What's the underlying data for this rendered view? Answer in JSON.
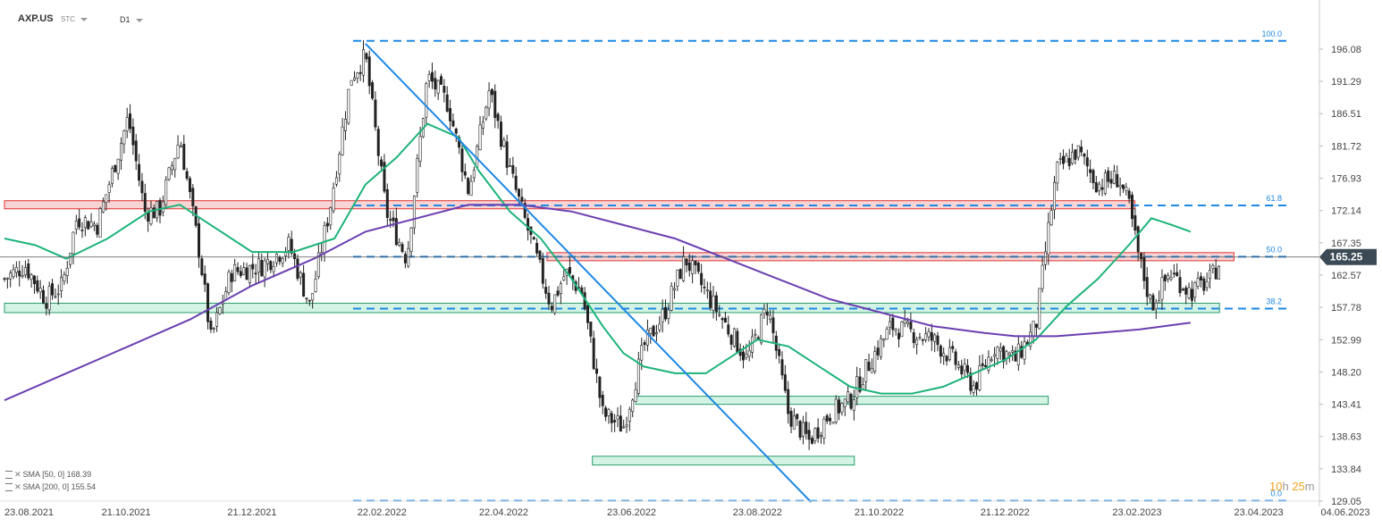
{
  "header": {
    "symbol": "AXP.US",
    "subtype": "STC",
    "timeframe": "D1"
  },
  "legend": [
    {
      "label": "SMA",
      "params": "[50, 0]",
      "value": "168.39",
      "color": "#1db37a"
    },
    {
      "label": "SMA",
      "params": "[200, 0]",
      "value": "155.54",
      "color": "#6b3fb0"
    }
  ],
  "countdown": {
    "hours": "10",
    "h_unit": "h",
    "minutes": "25",
    "m_unit": "m"
  },
  "chart_data": {
    "type": "candlestick",
    "symbol": "AXP.US",
    "timeframe": "D1",
    "y_range": [
      129.05,
      196.08
    ],
    "y_ticks": [
      {
        "value": 196.08,
        "label": "196.08"
      },
      {
        "value": 191.29,
        "label": "191.29"
      },
      {
        "value": 186.51,
        "label": "186.51"
      },
      {
        "value": 181.72,
        "label": "181.72"
      },
      {
        "value": 176.93,
        "label": "176.93"
      },
      {
        "value": 172.14,
        "label": "172.14"
      },
      {
        "value": 167.35,
        "label": "167.35"
      },
      {
        "value": 162.57,
        "label": "162.57"
      },
      {
        "value": 157.78,
        "label": "157.78"
      },
      {
        "value": 152.99,
        "label": "152.99"
      },
      {
        "value": 148.2,
        "label": "148.20"
      },
      {
        "value": 143.41,
        "label": "143.41"
      },
      {
        "value": 138.63,
        "label": "138.63"
      },
      {
        "value": 133.84,
        "label": "133.84"
      },
      {
        "value": 129.05,
        "label": "129.05"
      }
    ],
    "x_ticks": [
      {
        "day": 0,
        "label": "23.08.2021"
      },
      {
        "day": 59,
        "label": "21.10.2021"
      },
      {
        "day": 120,
        "label": "21.12.2021"
      },
      {
        "day": 183,
        "label": "22.02.2022"
      },
      {
        "day": 242,
        "label": "22.04.2022"
      },
      {
        "day": 304,
        "label": "23.06.2022"
      },
      {
        "day": 365,
        "label": "23.08.2022"
      },
      {
        "day": 424,
        "label": "21.10.2022"
      },
      {
        "day": 485,
        "label": "21.12.2022"
      },
      {
        "day": 549,
        "label": "23.02.2023"
      },
      {
        "day": 608,
        "label": "23.04.2023"
      },
      {
        "day": 650,
        "label": "04.06.2023"
      }
    ],
    "last_price": {
      "value": 165.25,
      "label": "165.25"
    },
    "fib_levels": [
      {
        "level": "100.0",
        "price": 197.3
      },
      {
        "level": "61.8",
        "price": 172.9
      },
      {
        "level": "50.0",
        "price": 165.3
      },
      {
        "level": "38.2",
        "price": 157.6
      },
      {
        "level": "0.0",
        "price": 129.1
      }
    ],
    "resistance_zones": [
      {
        "day_from": 0,
        "day_to": 548,
        "price_low": 172.4,
        "price_high": 173.6
      },
      {
        "day_from": 263,
        "day_to": 596,
        "price_low": 164.7,
        "price_high": 165.9
      }
    ],
    "support_zones": [
      {
        "day_from": 0,
        "day_to": 589,
        "price_low": 157.0,
        "price_high": 158.4
      },
      {
        "day_from": 306,
        "day_to": 506,
        "price_low": 143.4,
        "price_high": 144.6
      },
      {
        "day_from": 285,
        "day_to": 412,
        "price_low": 134.4,
        "price_high": 135.7
      }
    ],
    "trendline": {
      "from": {
        "day": 175,
        "price": 196.9
      },
      "to": {
        "day": 391,
        "price": 128.9
      }
    },
    "price_path": [
      [
        0,
        162
      ],
      [
        10,
        164
      ],
      [
        20,
        159
      ],
      [
        28,
        161
      ],
      [
        35,
        171
      ],
      [
        45,
        170
      ],
      [
        60,
        186
      ],
      [
        68,
        172
      ],
      [
        75,
        172
      ],
      [
        85,
        183
      ],
      [
        95,
        165
      ],
      [
        100,
        153
      ],
      [
        110,
        163
      ],
      [
        125,
        164
      ],
      [
        138,
        167
      ],
      [
        148,
        158
      ],
      [
        158,
        173
      ],
      [
        168,
        192
      ],
      [
        175,
        195
      ],
      [
        185,
        172
      ],
      [
        195,
        165
      ],
      [
        205,
        192
      ],
      [
        215,
        188
      ],
      [
        225,
        175
      ],
      [
        235,
        190
      ],
      [
        245,
        178
      ],
      [
        255,
        168
      ],
      [
        265,
        158
      ],
      [
        272,
        163
      ],
      [
        280,
        160
      ],
      [
        290,
        142
      ],
      [
        300,
        140
      ],
      [
        310,
        152
      ],
      [
        320,
        157
      ],
      [
        330,
        165
      ],
      [
        340,
        160
      ],
      [
        350,
        155
      ],
      [
        360,
        150
      ],
      [
        370,
        158
      ],
      [
        380,
        142
      ],
      [
        390,
        138
      ],
      [
        400,
        142
      ],
      [
        410,
        144
      ],
      [
        420,
        150
      ],
      [
        430,
        155
      ],
      [
        440,
        154
      ],
      [
        450,
        153
      ],
      [
        460,
        150
      ],
      [
        470,
        146
      ],
      [
        480,
        152
      ],
      [
        490,
        150
      ],
      [
        500,
        155
      ],
      [
        505,
        167
      ],
      [
        510,
        178
      ],
      [
        520,
        181
      ],
      [
        530,
        176
      ],
      [
        540,
        177
      ],
      [
        545,
        173
      ],
      [
        550,
        165
      ],
      [
        556,
        158
      ],
      [
        565,
        163
      ],
      [
        575,
        160
      ],
      [
        585,
        162
      ],
      [
        590,
        165.25
      ]
    ],
    "series": [
      {
        "name": "SMA [50, 0]",
        "points": [
          [
            0,
            168
          ],
          [
            15,
            167
          ],
          [
            30,
            165
          ],
          [
            50,
            168
          ],
          [
            70,
            172
          ],
          [
            85,
            173
          ],
          [
            100,
            170
          ],
          [
            120,
            166
          ],
          [
            140,
            166
          ],
          [
            160,
            168
          ],
          [
            175,
            176
          ],
          [
            190,
            180
          ],
          [
            205,
            185
          ],
          [
            220,
            183
          ],
          [
            230,
            178
          ],
          [
            245,
            172
          ],
          [
            260,
            168
          ],
          [
            275,
            162
          ],
          [
            290,
            155
          ],
          [
            300,
            151
          ],
          [
            310,
            149
          ],
          [
            325,
            148
          ],
          [
            340,
            148
          ],
          [
            355,
            151
          ],
          [
            365,
            153
          ],
          [
            380,
            152
          ],
          [
            395,
            149
          ],
          [
            410,
            146
          ],
          [
            425,
            145
          ],
          [
            440,
            145
          ],
          [
            455,
            146
          ],
          [
            470,
            148
          ],
          [
            485,
            150
          ],
          [
            500,
            153
          ],
          [
            515,
            158
          ],
          [
            530,
            162
          ],
          [
            545,
            167
          ],
          [
            556,
            171
          ],
          [
            566,
            170
          ],
          [
            575,
            169
          ]
        ]
      },
      {
        "name": "SMA [200, 0]",
        "points": [
          [
            0,
            144
          ],
          [
            30,
            148
          ],
          [
            60,
            152
          ],
          [
            90,
            156
          ],
          [
            120,
            161
          ],
          [
            150,
            165
          ],
          [
            175,
            169
          ],
          [
            200,
            171
          ],
          [
            225,
            173
          ],
          [
            250,
            173
          ],
          [
            275,
            172
          ],
          [
            300,
            170
          ],
          [
            325,
            168
          ],
          [
            350,
            165
          ],
          [
            375,
            162
          ],
          [
            400,
            159
          ],
          [
            425,
            157
          ],
          [
            450,
            155
          ],
          [
            475,
            154
          ],
          [
            490,
            153.5
          ],
          [
            510,
            153.5
          ],
          [
            530,
            154
          ],
          [
            550,
            154.5
          ],
          [
            575,
            155.5
          ]
        ]
      }
    ]
  }
}
